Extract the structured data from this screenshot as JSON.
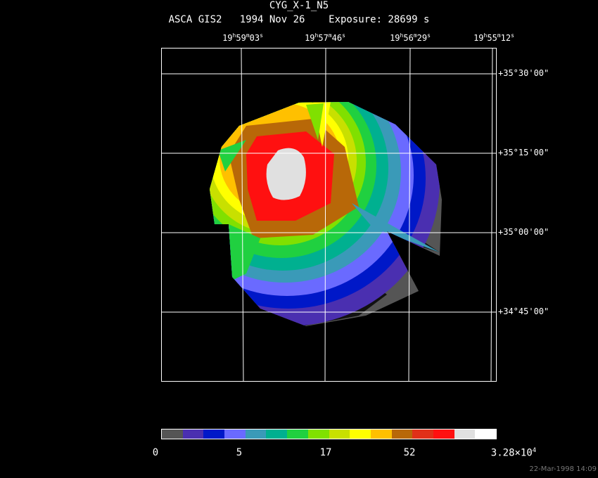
{
  "header": {
    "target": "CYG_X-1_N5",
    "subtitle": "ASCA GIS2   1994 Nov 26    Exposure: 28699 s"
  },
  "ra_ticks": [
    {
      "h": "19",
      "m": "59",
      "s": "03"
    },
    {
      "h": "19",
      "m": "57",
      "s": "46"
    },
    {
      "h": "19",
      "m": "56",
      "s": "29"
    },
    {
      "h": "19",
      "m": "55",
      "s": "12"
    }
  ],
  "dec_ticks": [
    "+35°30'00\"",
    "+35°15'00\"",
    "+35°00'00\"",
    "+34°45'00\""
  ],
  "colorbar": {
    "colors": [
      "#555555",
      "#4a2fb0",
      "#0018c8",
      "#6a6aff",
      "#3a9ab8",
      "#00b090",
      "#20d040",
      "#80e000",
      "#c8e000",
      "#ffff00",
      "#ffc000",
      "#b86808",
      "#e03018",
      "#ff1010",
      "#e0e0e0",
      "#ffffff"
    ],
    "labels": [
      {
        "text": "0"
      },
      {
        "text": "5"
      },
      {
        "text": "17"
      },
      {
        "text": "52"
      },
      {
        "text": "3.28×10",
        "sup": "4"
      }
    ]
  },
  "timestamp": "22-Mar-1998 14:09"
}
